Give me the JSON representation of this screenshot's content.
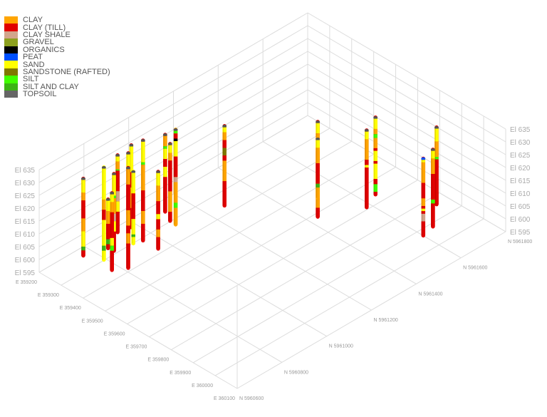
{
  "chart_data": {
    "type": "3d-borehole",
    "legend_placement": "top-left",
    "grid": true,
    "legend": [
      {
        "name": "CLAY",
        "color": "#FFA500"
      },
      {
        "name": "CLAY (TILL)",
        "color": "#E00000"
      },
      {
        "name": "CLAY SHALE",
        "color": "#D2A58C"
      },
      {
        "name": "GRAVEL",
        "color": "#8DA01E"
      },
      {
        "name": "ORGANICS",
        "color": "#000000"
      },
      {
        "name": "PEAT",
        "color": "#0050FF"
      },
      {
        "name": "SAND",
        "color": "#FFFF00"
      },
      {
        "name": "SANDSTONE (RAFTED)",
        "color": "#807800"
      },
      {
        "name": "SILT",
        "color": "#40FF00"
      },
      {
        "name": "SILT AND CLAY",
        "color": "#3CB414"
      },
      {
        "name": "TOPSOIL",
        "color": "#666666"
      }
    ],
    "axes": {
      "easting": {
        "range": [
          359200,
          360100
        ],
        "ticks": [
          359200,
          359300,
          359400,
          359500,
          359600,
          359700,
          359800,
          359900,
          360000,
          360100
        ],
        "prefix": "E "
      },
      "northing": {
        "range": [
          5960600,
          5961800
        ],
        "ticks": [
          5960600,
          5960800,
          5961000,
          5961200,
          5961400,
          5961600,
          5961800
        ],
        "prefix": "N "
      },
      "elevation": {
        "range": [
          595,
          635
        ],
        "ticks": [
          595,
          600,
          605,
          610,
          615,
          620,
          625,
          630,
          635
        ],
        "prefix": "El "
      }
    },
    "boreholes": [
      {
        "e": 359305,
        "n": 5960694,
        "top": 632,
        "layers": [
          [
            10,
            0.5
          ],
          [
            6,
            5
          ],
          [
            0,
            3
          ],
          [
            1,
            7
          ],
          [
            0,
            5
          ],
          [
            6,
            6
          ],
          [
            9,
            1.5
          ],
          [
            1,
            2
          ]
        ]
      },
      {
        "e": 359308,
        "n": 5960783,
        "top": 632,
        "layers": [
          [
            10,
            0.5
          ],
          [
            6,
            12
          ],
          [
            0,
            4
          ],
          [
            1,
            4
          ],
          [
            6,
            10
          ],
          [
            9,
            2
          ],
          [
            6,
            3.5
          ]
        ]
      },
      {
        "e": 359442,
        "n": 5960670,
        "top": 632,
        "layers": [
          [
            10,
            0.5
          ],
          [
            6,
            4
          ],
          [
            0,
            5
          ],
          [
            1,
            6
          ],
          [
            9,
            2
          ],
          [
            1,
            1.5
          ]
        ]
      },
      {
        "e": 359426,
        "n": 5960703,
        "top": 632,
        "layers": [
          [
            10,
            0.5
          ],
          [
            6,
            3
          ],
          [
            0,
            4
          ],
          [
            1,
            10
          ],
          [
            6,
            3
          ],
          [
            8,
            2
          ],
          [
            1,
            7.5
          ]
        ]
      },
      {
        "e": 359356,
        "n": 5960781,
        "top": 632,
        "layers": [
          [
            10,
            0.5
          ],
          [
            6,
            8
          ],
          [
            8,
            1
          ],
          [
            0,
            6
          ],
          [
            2,
            3
          ],
          [
            6,
            4
          ],
          [
            1,
            7.5
          ]
        ]
      },
      {
        "e": 359292,
        "n": 5960860,
        "top": 632,
        "layers": [
          [
            10,
            0.5
          ],
          [
            6,
            2
          ],
          [
            0,
            3
          ],
          [
            8,
            0.5
          ],
          [
            1,
            8
          ],
          [
            2,
            4
          ],
          [
            6,
            4
          ],
          [
            1,
            8
          ]
        ]
      },
      {
        "e": 359308,
        "n": 5960892,
        "top": 632,
        "layers": [
          [
            10,
            0.5
          ],
          [
            6,
            6
          ],
          [
            9,
            1.5
          ],
          [
            0,
            6
          ],
          [
            1,
            10
          ],
          [
            6,
            4
          ],
          [
            1,
            8
          ]
        ]
      },
      {
        "e": 359385,
        "n": 5960816,
        "top": 634,
        "layers": [
          [
            10,
            0.5
          ],
          [
            0,
            6
          ],
          [
            1,
            10
          ],
          [
            0,
            6
          ],
          [
            1,
            3
          ],
          [
            0,
            4
          ],
          [
            1,
            9.5
          ]
        ]
      },
      {
        "e": 359284,
        "n": 5960929,
        "top": 632,
        "layers": [
          [
            10,
            0.5
          ],
          [
            6,
            10
          ],
          [
            1,
            6
          ],
          [
            0,
            8
          ],
          [
            1,
            7.5
          ]
        ]
      },
      {
        "e": 359391,
        "n": 5960833,
        "top": 632,
        "layers": [
          [
            10,
            0.5
          ],
          [
            6,
            8
          ],
          [
            1,
            10
          ],
          [
            6,
            6
          ],
          [
            9,
            1
          ],
          [
            6,
            2.5
          ]
        ]
      },
      {
        "e": 359312,
        "n": 5960954,
        "top": 634,
        "layers": [
          [
            10,
            0.5
          ],
          [
            6,
            8
          ],
          [
            8,
            1
          ],
          [
            0,
            10
          ],
          [
            1,
            8
          ],
          [
            0,
            5
          ],
          [
            1,
            6.5
          ]
        ]
      },
      {
        "e": 359448,
        "n": 5960888,
        "top": 632,
        "layers": [
          [
            10,
            0.5
          ],
          [
            6,
            5
          ],
          [
            0,
            6
          ],
          [
            1,
            5
          ],
          [
            6,
            2
          ],
          [
            1,
            4
          ],
          [
            0,
            3
          ],
          [
            1,
            4.5
          ]
        ]
      },
      {
        "e": 359320,
        "n": 5961045,
        "top": 632,
        "layers": [
          [
            10,
            0.5
          ],
          [
            0,
            4
          ],
          [
            8,
            1
          ],
          [
            6,
            4
          ],
          [
            1,
            3
          ],
          [
            6,
            4
          ],
          [
            1,
            13.5
          ]
        ]
      },
      {
        "e": 359367,
        "n": 5961021,
        "top": 632,
        "layers": [
          [
            10,
            0.5
          ],
          [
            6,
            3
          ],
          [
            0,
            3
          ],
          [
            1,
            12
          ],
          [
            0,
            8
          ],
          [
            1,
            3.5
          ]
        ]
      },
      {
        "e": 359324,
        "n": 5961088,
        "top": 632,
        "layers": [
          [
            10,
            0.5
          ],
          [
            8,
            1
          ],
          [
            1,
            2
          ],
          [
            4,
            1
          ],
          [
            6,
            6
          ],
          [
            1,
            8
          ],
          [
            2,
            2
          ],
          [
            0,
            8
          ],
          [
            8,
            2
          ],
          [
            0,
            6.5
          ]
        ]
      },
      {
        "e": 359421,
        "n": 5961211,
        "top": 632,
        "layers": [
          [
            10,
            0.5
          ],
          [
            6,
            2
          ],
          [
            0,
            3
          ],
          [
            1,
            3
          ],
          [
            7,
            3
          ],
          [
            1,
            2
          ],
          [
            0,
            8
          ],
          [
            1,
            9.5
          ]
        ]
      },
      {
        "e": 359616,
        "n": 5961436,
        "top": 632,
        "layers": [
          [
            10,
            0.5
          ],
          [
            6,
            4
          ],
          [
            0,
            7
          ],
          [
            1,
            8
          ],
          [
            0,
            6
          ],
          [
            8,
            2
          ],
          [
            0,
            6
          ],
          [
            1,
            3.5
          ]
        ]
      },
      {
        "e": 359682,
        "n": 5961371,
        "top": 632,
        "layers": [
          [
            10,
            0.5
          ],
          [
            6,
            3
          ],
          [
            0,
            6
          ],
          [
            1,
            8
          ],
          [
            9,
            1.5
          ],
          [
            0,
            4
          ]
        ]
      },
      {
        "e": 359760,
        "n": 5961513,
        "top": 632,
        "layers": [
          [
            10,
            0.5
          ],
          [
            6,
            3
          ],
          [
            0,
            8
          ],
          [
            1,
            2
          ],
          [
            6,
            1
          ],
          [
            1,
            15.5
          ]
        ]
      },
      {
        "e": 359730,
        "n": 5961582,
        "top": 632,
        "layers": [
          [
            10,
            0.5
          ],
          [
            6,
            4
          ],
          [
            0,
            2
          ],
          [
            8,
            1.5
          ],
          [
            0,
            4
          ],
          [
            1,
            1
          ],
          [
            6,
            4
          ],
          [
            1,
            1
          ],
          [
            6,
            6
          ],
          [
            1,
            2
          ],
          [
            8,
            3
          ],
          [
            1,
            1
          ]
        ]
      },
      {
        "e": 359998,
        "n": 5961532,
        "top": 632,
        "layers": [
          [
            5,
            0.5
          ],
          [
            6,
            1
          ],
          [
            0,
            8
          ],
          [
            1,
            6
          ],
          [
            0,
            3
          ],
          [
            1,
            1
          ],
          [
            6,
            1
          ],
          [
            1,
            1
          ],
          [
            2,
            3
          ],
          [
            1,
            5.5
          ]
        ]
      },
      {
        "e": 359985,
        "n": 5961588,
        "top": 632,
        "layers": [
          [
            10,
            0.5
          ],
          [
            6,
            3
          ],
          [
            0,
            6
          ],
          [
            1,
            10
          ],
          [
            8,
            1.5
          ],
          [
            1,
            9
          ]
        ]
      },
      {
        "e": 359907,
        "n": 5961681,
        "top": 632,
        "layers": [
          [
            10,
            0.5
          ],
          [
            6,
            5
          ],
          [
            0,
            6
          ],
          [
            8,
            1
          ],
          [
            1,
            17.5
          ]
        ]
      }
    ]
  }
}
